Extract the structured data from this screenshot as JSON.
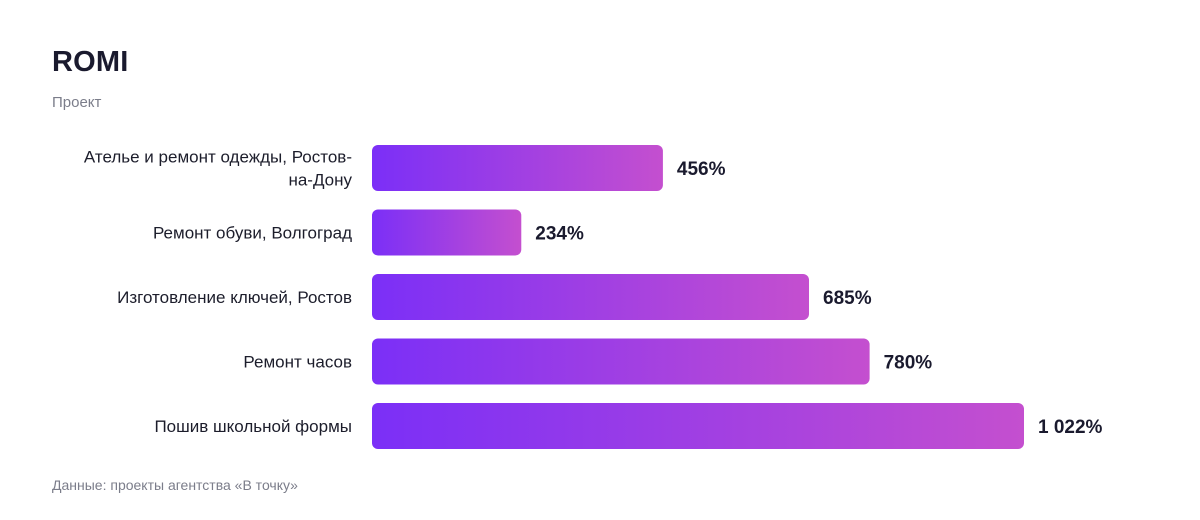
{
  "header": {
    "title": "ROMI",
    "subtitle": "Проект"
  },
  "footer": {
    "source": "Данные: проекты агентства «В точку»"
  },
  "colors": {
    "bar_start": "#7b2ff7",
    "bar_end": "#c44fcf",
    "label_text": "#1c1d2b",
    "value_text": "#1a1a2e"
  },
  "chart_data": {
    "type": "bar",
    "orientation": "horizontal",
    "title": "ROMI",
    "subtitle": "Проект",
    "categories": [
      [
        "Ателье и ремонт одежды, Ростов-",
        "на-Дону"
      ],
      [
        "Ремонт обуви, Волгоград"
      ],
      [
        "Изготовление ключей, Ростов"
      ],
      [
        "Ремонт часов"
      ],
      [
        "Пошив школьной формы"
      ]
    ],
    "values": [
      456,
      234,
      685,
      780,
      1022
    ],
    "value_labels": [
      "456%",
      "234%",
      "685%",
      "780%",
      "1 022%"
    ],
    "unit": "%",
    "xlim": [
      0,
      1022
    ],
    "grid": false,
    "legend": "none"
  }
}
